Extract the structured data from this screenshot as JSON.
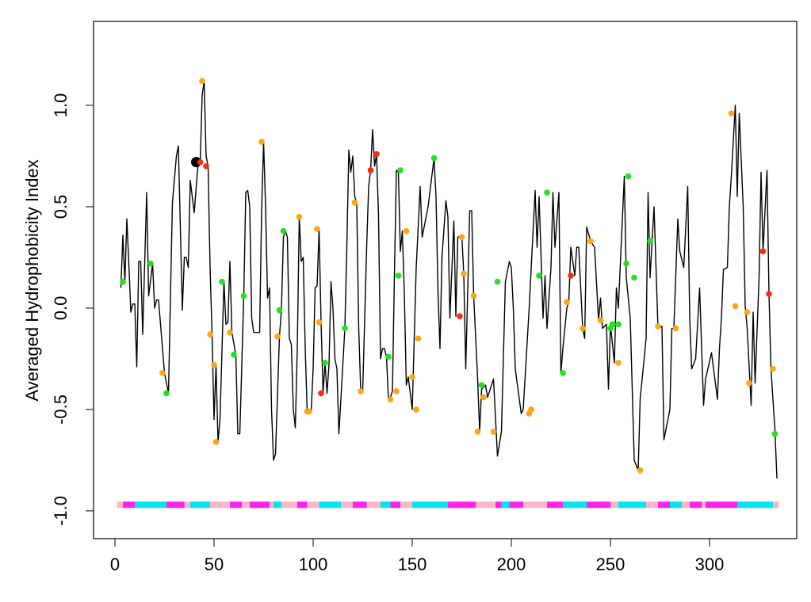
{
  "chart_data": {
    "type": "line",
    "ylabel": "Averaged Hydrophobicity Index",
    "xlim": [
      -10.8,
      344
    ],
    "ylim": [
      -1.137,
      1.414
    ],
    "xticks": [
      0,
      50,
      100,
      150,
      200,
      250,
      300
    ],
    "yticks": [
      {
        "value": -1,
        "label": "-1.0"
      },
      -0.5,
      {
        "value": 0,
        "label": "0.0"
      },
      0.5,
      {
        "value": 1,
        "label": "1.0"
      }
    ],
    "series": [
      {
        "color": "#000000",
        "x": [
          3,
          4,
          5,
          6,
          7,
          8,
          9,
          10,
          11,
          12,
          13,
          14,
          16,
          17,
          19,
          20,
          21,
          22,
          24,
          25,
          27,
          29,
          31,
          32,
          34,
          35,
          36,
          37,
          38,
          40,
          42,
          43,
          44,
          45,
          46,
          47,
          48,
          49,
          50,
          51,
          52,
          53,
          55,
          56,
          57,
          58,
          59,
          61,
          62,
          63,
          65,
          66,
          67,
          68,
          69,
          70,
          72,
          73,
          74,
          75,
          76,
          77,
          78,
          79,
          80,
          81,
          83,
          84,
          85,
          86,
          87,
          88,
          89,
          90,
          91,
          92,
          93,
          94,
          95,
          96,
          97,
          98,
          99,
          100,
          101,
          102,
          103,
          104,
          105,
          106,
          107,
          108,
          109,
          110,
          111,
          112,
          113,
          114,
          116,
          117,
          118,
          119,
          120,
          121,
          122,
          123,
          124,
          125,
          127,
          128,
          129,
          130,
          131,
          132,
          133,
          134,
          135,
          136,
          137,
          138,
          139,
          140,
          141,
          142,
          143,
          144,
          145,
          146,
          147,
          148,
          150,
          151,
          152,
          154,
          155,
          158,
          161,
          162,
          163,
          164,
          165,
          167,
          168,
          169,
          171,
          172,
          173,
          175,
          176,
          177,
          179,
          180,
          181,
          183,
          184,
          185,
          187,
          188,
          191,
          193,
          195,
          197,
          199,
          200,
          201,
          202,
          205,
          206,
          209,
          212,
          213,
          214,
          216,
          217,
          218,
          220,
          221,
          222,
          224,
          225,
          226,
          228,
          229,
          230,
          232,
          233,
          234,
          236,
          237,
          238,
          240,
          242,
          244,
          245,
          246,
          248,
          249,
          250,
          252,
          253,
          254,
          257,
          258,
          260,
          261,
          262,
          264,
          265,
          268,
          269,
          270,
          272,
          274,
          276,
          277,
          280,
          281,
          282,
          284,
          285,
          287,
          289,
          290,
          291,
          293,
          295,
          297,
          298,
          301,
          304,
          305,
          306,
          307,
          309,
          310,
          311,
          313,
          314,
          315,
          317,
          318,
          319,
          321,
          322,
          323,
          325,
          326,
          327,
          329,
          330,
          331,
          333,
          334
        ],
        "values": [
          0.1,
          0.36,
          0.13,
          0.44,
          0.22,
          -0.02,
          0.02,
          0.02,
          -0.29,
          0.23,
          0.23,
          -0.13,
          0.57,
          0.06,
          0.22,
          0,
          0.04,
          0.04,
          -0.2,
          -0.32,
          -0.42,
          0.52,
          0.75,
          0.8,
          -0.01,
          0.25,
          0.25,
          0.2,
          0.63,
          0.47,
          0.72,
          0.71,
          1.05,
          1.12,
          0.75,
          0.7,
          0.2,
          -0.13,
          -0.55,
          -0.28,
          -0.66,
          -0.55,
          0.13,
          -0.08,
          -0.07,
          0.23,
          -0.12,
          -0.23,
          -0.62,
          -0.62,
          0.06,
          0.57,
          0.58,
          0.5,
          -0.05,
          -0.12,
          -0.12,
          -0.12,
          0.48,
          0.82,
          0.5,
          0.05,
          0.1,
          -0.5,
          -0.75,
          -0.72,
          -0.14,
          -0.01,
          0.35,
          0.38,
          0.35,
          -0.15,
          -0.18,
          -0.5,
          -0.59,
          -0.2,
          0.45,
          0.23,
          0.25,
          -0.2,
          -0.51,
          -0.51,
          -0.51,
          -0.3,
          0.1,
          0.11,
          0.39,
          -0.07,
          -0.42,
          -0.27,
          -0.42,
          -0.28,
          0.13,
          0,
          -0.25,
          -0.3,
          -0.62,
          -0.45,
          -0.1,
          0.3,
          0.78,
          0.67,
          0.75,
          0.55,
          0.52,
          -0.1,
          -0.41,
          -0.41,
          0.3,
          0.6,
          0.68,
          0.88,
          0.7,
          0.76,
          0.45,
          -0.25,
          -0.2,
          -0.2,
          -0.24,
          -0.45,
          -0.44,
          -0.41,
          0.16,
          0.68,
          0.67,
          0.28,
          0.38,
          0.08,
          -0.38,
          -0.34,
          -0.5,
          -0.15,
          0.2,
          0.6,
          0.35,
          0.5,
          0.74,
          0.55,
          0.08,
          -0.2,
          0.25,
          0.53,
          0.45,
          -0.05,
          0.43,
          -0.04,
          0.35,
          0.36,
          0.17,
          -0.3,
          0.48,
          0.48,
          0.06,
          -0.35,
          -0.61,
          -0.4,
          -0.38,
          -0.44,
          -0.35,
          -0.73,
          -0.61,
          0.13,
          0.23,
          0.2,
          0,
          -0.3,
          -0.52,
          -0.5,
          0,
          0.58,
          0.3,
          0.55,
          -0.05,
          0.16,
          -0.1,
          0.2,
          0.57,
          0.3,
          0.57,
          -0.32,
          -0.2,
          0,
          0.03,
          0.3,
          0.16,
          0.3,
          0.3,
          -0.1,
          -0.15,
          0.4,
          0.33,
          0.3,
          -0.06,
          0.05,
          -0.1,
          -0.08,
          -0.4,
          -0.08,
          -0.27,
          0.1,
          0,
          0.65,
          0.15,
          -0.05,
          -0.4,
          -0.75,
          -0.8,
          -0.45,
          -0.15,
          0.57,
          0.15,
          0.5,
          -0.1,
          -0.09,
          -0.65,
          -0.5,
          -0.1,
          -0.1,
          0.44,
          0.28,
          0.2,
          0.6,
          -0.05,
          -0.3,
          -0.25,
          0.1,
          -0.48,
          -0.35,
          -0.22,
          -0.45,
          -0.2,
          -0.05,
          0.19,
          0.2,
          0.5,
          0.65,
          1.0,
          0.55,
          0.96,
          0.5,
          0.01,
          -0.1,
          -0.48,
          -0.02,
          -0.37,
          0.15,
          0.67,
          0.28,
          0.68,
          0.07,
          -0.3,
          -0.6,
          -0.84
        ]
      }
    ],
    "points": {
      "x": [
        4,
        18,
        24,
        26,
        43,
        44,
        46,
        48,
        50,
        51,
        54,
        58,
        60,
        65,
        74,
        82,
        83,
        85,
        93,
        97,
        98,
        102,
        103,
        104,
        106,
        116,
        121,
        124,
        129,
        132,
        138,
        139,
        142,
        143,
        144,
        147,
        150,
        152,
        153,
        161,
        174,
        175,
        176,
        181,
        183,
        185,
        186,
        191,
        193,
        209,
        210,
        214,
        218,
        226,
        228,
        230,
        236,
        240,
        245,
        250,
        251,
        254,
        254,
        258,
        259,
        262,
        265,
        270,
        274,
        283,
        311,
        313,
        319,
        320,
        327,
        330,
        332,
        333
      ],
      "values": [
        0.13,
        0.22,
        -0.32,
        -0.42,
        0.72,
        1.12,
        0.7,
        -0.13,
        -0.28,
        -0.66,
        0.13,
        -0.12,
        -0.23,
        0.06,
        0.82,
        -0.14,
        -0.01,
        0.38,
        0.45,
        -0.51,
        -0.51,
        0.39,
        -0.07,
        -0.42,
        -0.27,
        -0.1,
        0.52,
        -0.41,
        0.68,
        0.76,
        -0.24,
        -0.45,
        -0.41,
        0.16,
        0.68,
        0.38,
        -0.34,
        -0.5,
        -0.15,
        0.74,
        -0.04,
        0.35,
        0.17,
        0.06,
        -0.61,
        -0.38,
        -0.44,
        -0.61,
        0.13,
        -0.52,
        -0.5,
        0.16,
        0.57,
        -0.32,
        0.03,
        0.16,
        -0.1,
        0.33,
        -0.06,
        -0.1,
        -0.08,
        -0.08,
        -0.27,
        0.22,
        0.65,
        0.15,
        -0.8,
        0.33,
        -0.09,
        -0.1,
        0.96,
        0.01,
        -0.02,
        -0.37,
        0.28,
        0.07,
        -0.3,
        -0.62
      ],
      "colors": [
        "#22e022",
        "#22e022",
        "#ffa514",
        "#22e022",
        "#ff2a14",
        "#ffa514",
        "#ff2a14",
        "#ffa514",
        "#ffa514",
        "#ffa514",
        "#22e022",
        "#ffa514",
        "#22e022",
        "#22e022",
        "#ffa514",
        "#ffa514",
        "#22e022",
        "#22e022",
        "#ffa514",
        "#ffa514",
        "#ffa514",
        "#ffa514",
        "#ffa514",
        "#ff2a14",
        "#22e022",
        "#22e022",
        "#ffa514",
        "#ffa514",
        "#ff2a14",
        "#ff2a14",
        "#22e022",
        "#ffa514",
        "#ffa514",
        "#22e022",
        "#22e022",
        "#ffa514",
        "#ffa514",
        "#ffa514",
        "#ffa514",
        "#22e022",
        "#ff2a14",
        "#ffa514",
        "#ffa514",
        "#ffa514",
        "#ffa514",
        "#22e022",
        "#ffa514",
        "#ffa514",
        "#22e022",
        "#ffa514",
        "#ffa514",
        "#22e022",
        "#22e022",
        "#22e022",
        "#ffa514",
        "#ff2a14",
        "#ffa514",
        "#ffa514",
        "#ffa514",
        "#22e022",
        "#22e022",
        "#22e022",
        "#ffa514",
        "#22e022",
        "#22e022",
        "#22e022",
        "#ffa514",
        "#22e022",
        "#ffa514",
        "#ffa514",
        "#ffa514",
        "#ffa514",
        "#ffa514",
        "#ffa514",
        "#ff2a14",
        "#ff2a14",
        "#ffa514",
        "#22e022"
      ]
    },
    "highlight": {
      "x": 41,
      "value": 0.72,
      "color": "#000000"
    },
    "track": {
      "value": -0.97,
      "breaks": [
        1,
        4,
        10,
        26,
        35,
        38,
        48,
        58,
        64,
        68,
        78,
        80,
        84,
        92,
        97,
        103,
        114,
        120,
        127,
        134,
        139,
        144,
        150,
        168,
        182,
        192,
        195,
        199,
        206,
        218,
        226,
        238,
        250,
        254,
        268,
        274,
        280,
        286,
        290,
        296,
        298,
        314,
        332,
        335
      ],
      "colors": [
        "#ffb6c8",
        "#ff22ee",
        "#00e5ee",
        "#ff22ee",
        "#ffb6c8",
        "#00e5ee",
        "#ffb6c8",
        "#ff22ee",
        "#ffb6c8",
        "#ff22ee",
        "#ffb6c8",
        "#00e5ee",
        "#ffb6c8",
        "#ff22ee",
        "#ffb6c8",
        "#00e5ee",
        "#ffb6c8",
        "#ff22ee",
        "#ffb6c8",
        "#00e5ee",
        "#ff22ee",
        "#ffb6c8",
        "#00e5ee",
        "#ff22ee",
        "#ffb6c8",
        "#ff22ee",
        "#00e5ee",
        "#ff22ee",
        "#ffb6c8",
        "#ff22ee",
        "#00e5ee",
        "#ff22ee",
        "#ffb6c8",
        "#00e5ee",
        "#ffb6c8",
        "#ff22ee",
        "#00e5ee",
        "#ffb6c8",
        "#ff22ee",
        "#ffb6c8",
        "#ff22ee",
        "#00e5ee",
        "#ffb6c8"
      ]
    }
  }
}
